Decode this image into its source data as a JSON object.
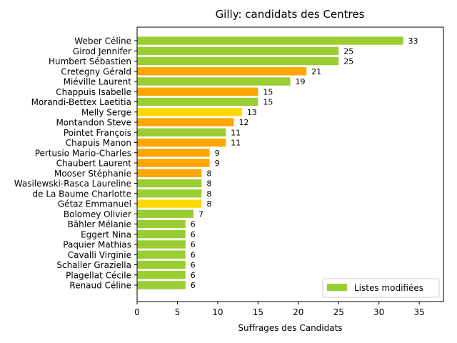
{
  "chart_data": {
    "type": "bar",
    "orientation": "horizontal",
    "title": "Gilly: candidats des Centres",
    "xlabel": "Suffrages des Candidats",
    "ylabel": "",
    "xlim": [
      0,
      38
    ],
    "xticks": [
      0,
      5,
      10,
      15,
      20,
      25,
      30,
      35
    ],
    "grid": false,
    "legend": {
      "label": "Listes modifiées",
      "placement": "bottom-right",
      "color": "#9acd32"
    },
    "colors": {
      "green": "#9acd32",
      "orange": "#ffa500",
      "gold": "#ffd700"
    },
    "categories": [
      "Weber Céline",
      "Girod Jennifer",
      "Humbert Sébastien",
      "Cretegny Gérald",
      "Miéville Laurent",
      "Chappuis Isabelle",
      "Morandi-Bettex Laetitia",
      "Melly Serge",
      "Montandon Steve",
      "Pointet François",
      "Chapuis Manon",
      "Pertusio Mario-Charles",
      "Chaubert Laurent",
      "Mooser Stéphanie",
      "Wasilewski-Rasca Laureline",
      "de La Baume Charlotte",
      "Gétaz Emmanuel",
      "Bolomey Olivier",
      "Bähler Mélanie",
      "Eggert Nina",
      "Paquier Mathias",
      "Cavalli Virginie",
      "Schaller Graziella",
      "Plagellat Cécile",
      "Renaud Céline"
    ],
    "values": [
      33,
      25,
      25,
      21,
      19,
      15,
      15,
      13,
      12,
      11,
      11,
      9,
      9,
      8,
      8,
      8,
      8,
      7,
      6,
      6,
      6,
      6,
      6,
      6,
      6
    ],
    "bar_colors": [
      "green",
      "green",
      "green",
      "orange",
      "green",
      "orange",
      "green",
      "gold",
      "orange",
      "green",
      "orange",
      "orange",
      "orange",
      "orange",
      "green",
      "green",
      "gold",
      "green",
      "green",
      "green",
      "green",
      "green",
      "green",
      "green",
      "green"
    ]
  }
}
